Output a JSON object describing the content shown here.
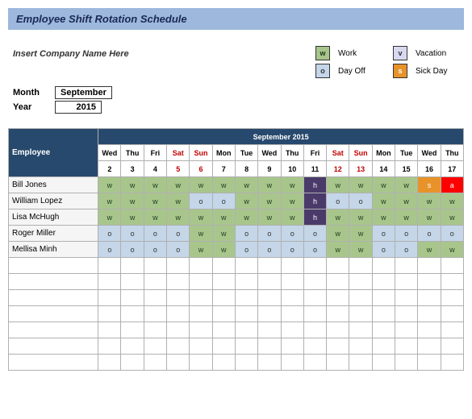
{
  "title": "Employee Shift Rotation Schedule",
  "company_placeholder": "Insert Company Name Here",
  "month_label": "Month",
  "year_label": "Year",
  "month_value": "September",
  "year_value": "2015",
  "legend": {
    "work": {
      "code": "w",
      "label": "Work",
      "bg": "#a8c68c",
      "fg": "#1a3a1a"
    },
    "vacation": {
      "code": "v",
      "label": "Vacation",
      "bg": "#d8d8f0",
      "fg": "#333333"
    },
    "dayoff": {
      "code": "o",
      "label": "Day Off",
      "bg": "#c4d6e8",
      "fg": "#333333"
    },
    "sick": {
      "code": "s",
      "label": "Sick Day",
      "bg": "#e8932a",
      "fg": "#ffffff"
    }
  },
  "colors": {
    "header_bg": "#27496d",
    "header_fg": "#ffffff",
    "title_bg": "#9db8dc",
    "weekend_fg": "#c00000",
    "h_bg": "#4a3a6a",
    "h_fg": "#ffffff",
    "a_bg": "#ff0000",
    "a_fg": "#ffffff",
    "s_bg": "#e8932a",
    "s_fg": "#ffffff",
    "w_bg": "#a8c68c",
    "w_fg": "#1a3a1a",
    "o_bg": "#c4d6e8",
    "o_fg": "#333333",
    "emp_bg": "#f5f5f5"
  },
  "schedule": {
    "month_title": "September 2015",
    "employee_header": "Employee",
    "days": [
      {
        "dow": "Wed",
        "date": "2",
        "weekend": false
      },
      {
        "dow": "Thu",
        "date": "3",
        "weekend": false
      },
      {
        "dow": "Fri",
        "date": "4",
        "weekend": false
      },
      {
        "dow": "Sat",
        "date": "5",
        "weekend": true
      },
      {
        "dow": "Sun",
        "date": "6",
        "weekend": true
      },
      {
        "dow": "Mon",
        "date": "7",
        "weekend": false
      },
      {
        "dow": "Tue",
        "date": "8",
        "weekend": false
      },
      {
        "dow": "Wed",
        "date": "9",
        "weekend": false
      },
      {
        "dow": "Thu",
        "date": "10",
        "weekend": false
      },
      {
        "dow": "Fri",
        "date": "11",
        "weekend": false
      },
      {
        "dow": "Sat",
        "date": "12",
        "weekend": true
      },
      {
        "dow": "Sun",
        "date": "13",
        "weekend": true
      },
      {
        "dow": "Mon",
        "date": "14",
        "weekend": false
      },
      {
        "dow": "Tue",
        "date": "15",
        "weekend": false
      },
      {
        "dow": "Wed",
        "date": "16",
        "weekend": false
      },
      {
        "dow": "Thu",
        "date": "17",
        "weekend": false
      }
    ],
    "employees": [
      {
        "name": "Bill Jones",
        "cells": [
          "w",
          "w",
          "w",
          "w",
          "w",
          "w",
          "w",
          "w",
          "w",
          "h",
          "w",
          "w",
          "w",
          "w",
          "s",
          "a"
        ]
      },
      {
        "name": "William Lopez",
        "cells": [
          "w",
          "w",
          "w",
          "w",
          "o",
          "o",
          "w",
          "w",
          "w",
          "h",
          "o",
          "o",
          "w",
          "w",
          "w",
          "w"
        ]
      },
      {
        "name": "Lisa McHugh",
        "cells": [
          "w",
          "w",
          "w",
          "w",
          "w",
          "w",
          "w",
          "w",
          "w",
          "h",
          "w",
          "w",
          "w",
          "w",
          "w",
          "w"
        ]
      },
      {
        "name": "Roger Miller",
        "cells": [
          "o",
          "o",
          "o",
          "o",
          "w",
          "w",
          "o",
          "o",
          "o",
          "o",
          "w",
          "w",
          "o",
          "o",
          "o",
          "o"
        ]
      },
      {
        "name": "Mellisa Minh",
        "cells": [
          "o",
          "o",
          "o",
          "o",
          "w",
          "w",
          "o",
          "o",
          "o",
          "o",
          "w",
          "w",
          "o",
          "o",
          "w",
          "w"
        ]
      }
    ],
    "empty_rows": 7
  }
}
